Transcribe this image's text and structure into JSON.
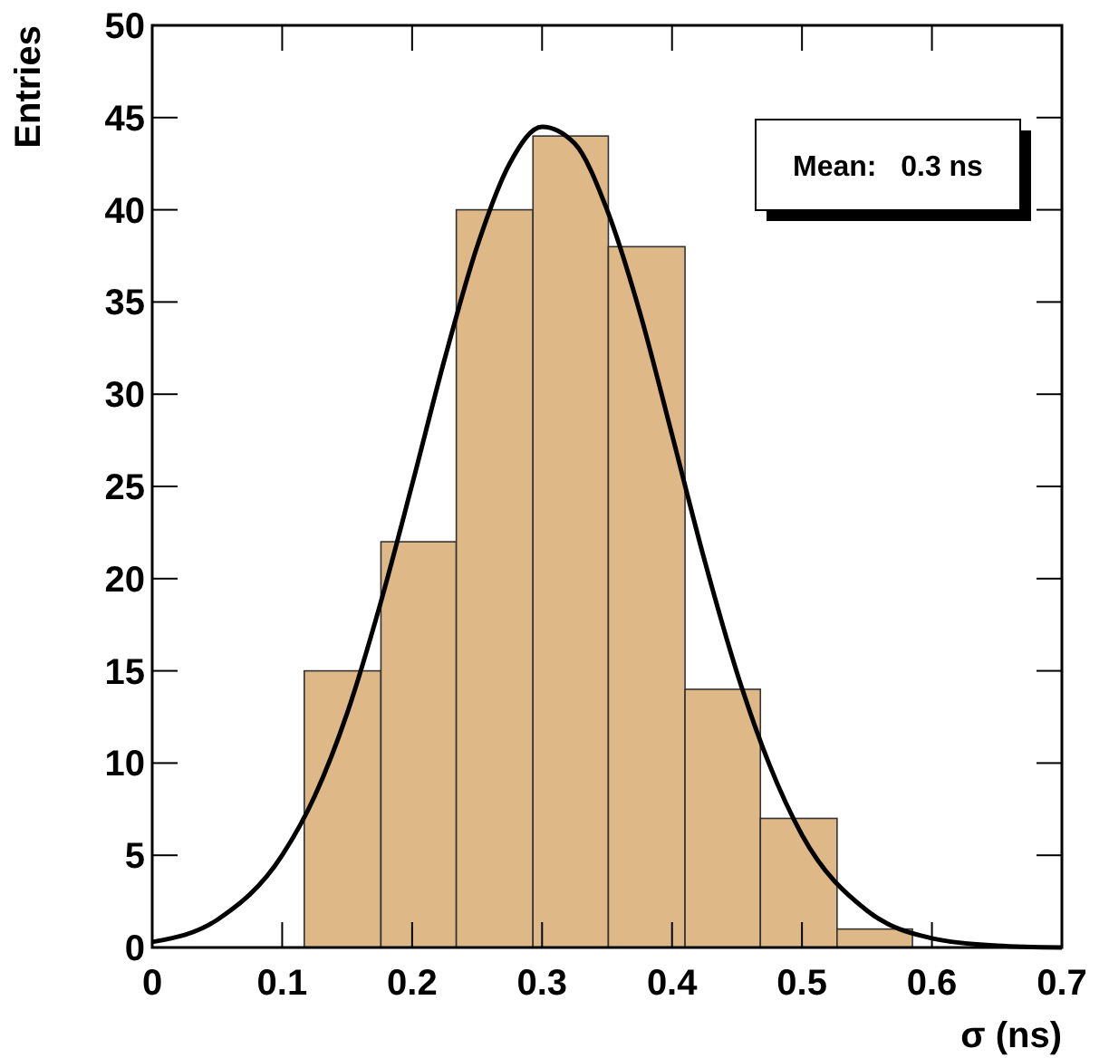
{
  "chart_data": {
    "type": "histogram",
    "xlabel": "σ (ns)",
    "ylabel": "Entries",
    "bins": [
      0.117,
      0.176,
      0.234,
      0.293,
      0.351,
      0.41,
      0.468,
      0.527,
      0.585
    ],
    "values": [
      15,
      22,
      40,
      44,
      38,
      14,
      7,
      1
    ],
    "color": "#deb887",
    "series": [
      {
        "type": "line",
        "color": "#000000",
        "x": [
          0,
          0.05,
          0.1,
          0.125,
          0.15,
          0.175,
          0.2,
          0.225,
          0.25,
          0.275,
          0.3,
          0.325,
          0.35,
          0.375,
          0.4,
          0.425,
          0.45,
          0.475,
          0.5,
          0.55,
          0.6,
          0.65,
          0.7
        ],
        "values": [
          0.3,
          1.5,
          5.0,
          8.2,
          12.7,
          18.5,
          25.1,
          31.9,
          38.0,
          42.5,
          44.5,
          43.6,
          40.0,
          34.5,
          27.8,
          21.0,
          14.9,
          9.9,
          6.1,
          2.0,
          0.5,
          0.1,
          0.0
        ]
      }
    ],
    "annotations": [
      "Mean:   0.3 ns"
    ],
    "xlim": [
      0,
      0.7
    ],
    "xticks": [
      {
        "value": 0,
        "label": "0"
      },
      0.1,
      0.2,
      0.3,
      0.4,
      0.5,
      0.6,
      0.7
    ],
    "ylim": [
      0,
      50
    ],
    "yticks": [
      0,
      5,
      10,
      15,
      20,
      25,
      30,
      35,
      40,
      45,
      50
    ],
    "grid": false
  }
}
